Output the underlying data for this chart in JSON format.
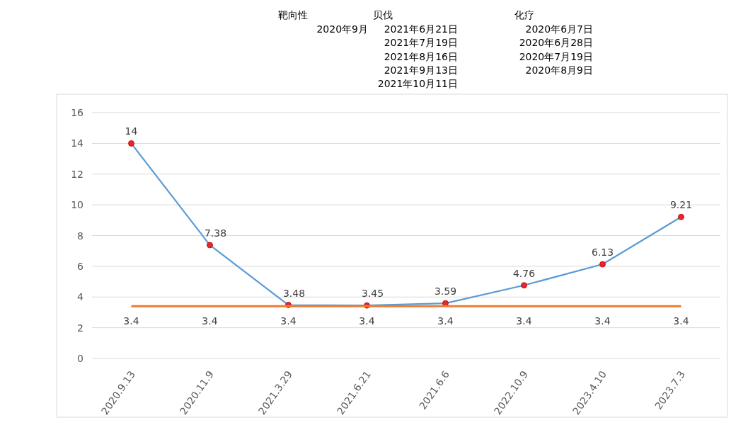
{
  "chart_data": {
    "type": "line",
    "categories": [
      "2020.9.13",
      "2020.11.9",
      "2021.3.29",
      "2021.6.21",
      "2021.6.6",
      "2022.10.9",
      "2023.4.10",
      "2023.7.3"
    ],
    "series": [
      {
        "color": "#5b9bd5",
        "marker": "circle",
        "colors": [
          "#e8262b",
          "#e8262b",
          "#e8262b",
          "#e8262b",
          "#e8262b",
          "#e8262b",
          "#e8262b",
          "#e8262b"
        ],
        "values": [
          14,
          7.38,
          3.48,
          3.45,
          3.59,
          4.76,
          6.13,
          9.21
        ]
      },
      {
        "color": "#ed7d31",
        "marker": "none",
        "values": [
          3.4,
          3.4,
          3.4,
          3.4,
          3.4,
          3.4,
          3.4,
          3.4
        ]
      }
    ],
    "ylim": [
      0,
      16
    ],
    "yticks": [
      0,
      2,
      4,
      6,
      8,
      10,
      12,
      14,
      16
    ],
    "grid": "y",
    "data_labels": true,
    "annotations": [
      "靶向性",
      "贝伐",
      "化疗",
      "2020年9月",
      "2021年6月21日",
      "2020年6月7日",
      "2021年7月19日",
      "2020年6月28日",
      "2021年8月16日",
      "2020年7月19日",
      "2021年9月13日",
      "2020年8月9日",
      "2021年10月11日"
    ]
  }
}
